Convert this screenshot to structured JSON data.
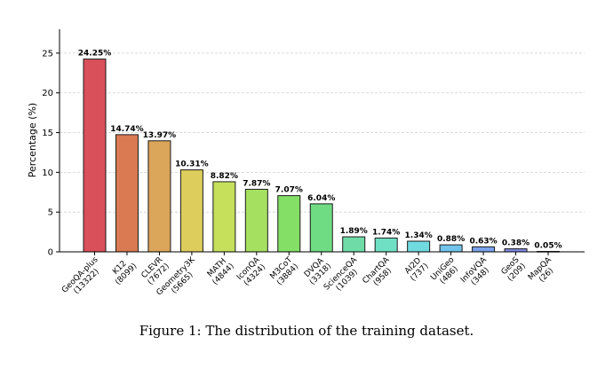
{
  "chart_data": {
    "type": "bar",
    "categories": [
      [
        "GeoQA-plus",
        "(13322)"
      ],
      [
        "K12",
        "(8099)"
      ],
      [
        "CLEVR",
        "(7672)"
      ],
      [
        "Geometry3K",
        "(5665)"
      ],
      [
        "MATH",
        "(4844)"
      ],
      [
        "IconQA",
        "(4324)"
      ],
      [
        "M3CoT",
        "(3884)"
      ],
      [
        "DVQA",
        "(3318)"
      ],
      [
        "ScienceQA",
        "(1039)"
      ],
      [
        "ChartQA",
        "(958)"
      ],
      [
        "AI2D",
        "(737)"
      ],
      [
        "UniGeo",
        "(486)"
      ],
      [
        "InfoVQA",
        "(348)"
      ],
      [
        "GeoS",
        "(209)"
      ],
      [
        "MapQA",
        "(26)"
      ]
    ],
    "values": [
      24.25,
      14.74,
      13.97,
      10.31,
      8.82,
      7.87,
      7.07,
      6.04,
      1.89,
      1.74,
      1.34,
      0.88,
      0.63,
      0.38,
      0.05
    ],
    "data_labels": [
      "24.25%",
      "14.74%",
      "13.97%",
      "10.31%",
      "8.82%",
      "7.87%",
      "7.07%",
      "6.04%",
      "1.89%",
      "1.74%",
      "1.34%",
      "0.88%",
      "0.63%",
      "0.38%",
      "0.05%"
    ],
    "colors": [
      "#d9505a",
      "#d97a52",
      "#dba55a",
      "#dccd5c",
      "#c6e05c",
      "#a6e060",
      "#84df66",
      "#6fdc84",
      "#6fdca8",
      "#6fe0c4",
      "#6fdbe0",
      "#72c4ec",
      "#7aa2ea",
      "#8288e8",
      "#8a74e6"
    ],
    "ylabel": "Percentage (%)",
    "ylim": [
      0,
      28
    ],
    "yticks": [
      0,
      5,
      10,
      15,
      20,
      25
    ],
    "grid": true
  },
  "caption": "Figure 1: The distribution of the training dataset."
}
